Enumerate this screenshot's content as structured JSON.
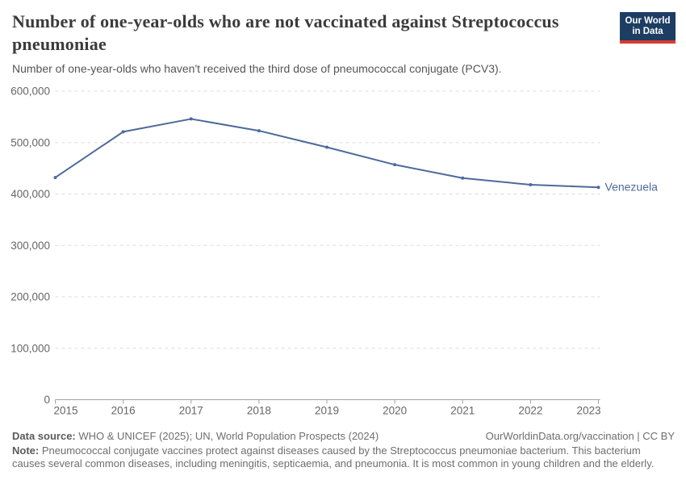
{
  "header": {
    "title": "Number of one-year-olds who are not vaccinated against Streptococcus pneumoniae",
    "subtitle": "Number of one-year-olds who haven't received the third dose of pneumococcal conjugate (PCV3).",
    "logo": {
      "line1": "Our World",
      "line2": "in Data",
      "bg_color": "#1d3d63",
      "stripe_color": "#d73c32"
    }
  },
  "chart_data": {
    "type": "line",
    "title": "Number of one-year-olds who are not vaccinated against Streptococcus pneumoniae",
    "x": [
      2015,
      2016,
      2017,
      2018,
      2019,
      2020,
      2021,
      2022,
      2023
    ],
    "xtick_labels": [
      "2015",
      "2016",
      "2017",
      "2018",
      "2019",
      "2020",
      "2021",
      "2022",
      "2023"
    ],
    "series": [
      {
        "name": "Venezuela",
        "color": "#4c6a9c",
        "values": [
          432000,
          521000,
          546000,
          523000,
          491000,
          457000,
          431000,
          418000,
          413000
        ]
      }
    ],
    "ylim": [
      0,
      600000
    ],
    "yticks": [
      0,
      100000,
      200000,
      300000,
      400000,
      500000,
      600000
    ],
    "ytick_labels": [
      "0",
      "100,000",
      "200,000",
      "300,000",
      "400,000",
      "500,000",
      "600,000"
    ],
    "grid": "horizontal-dashed",
    "legend_position": "end-of-line-label",
    "grid_color": "#dcdcdc",
    "axis_color": "#a1a1a1",
    "tick_label_color": "#666666"
  },
  "footer": {
    "source_label": "Data source:",
    "source_text": " WHO & UNICEF (2025); UN, World Population Prospects (2024)",
    "link": "OurWorldinData.org/vaccination | CC BY",
    "note_label": "Note:",
    "note_text": " Pneumococcal conjugate vaccines protect against diseases caused by the Streptococcus pneumoniae bacterium. This bacterium causes several common diseases, including meningitis, septicaemia, and pneumonia. It is most common in young children and the elderly."
  }
}
